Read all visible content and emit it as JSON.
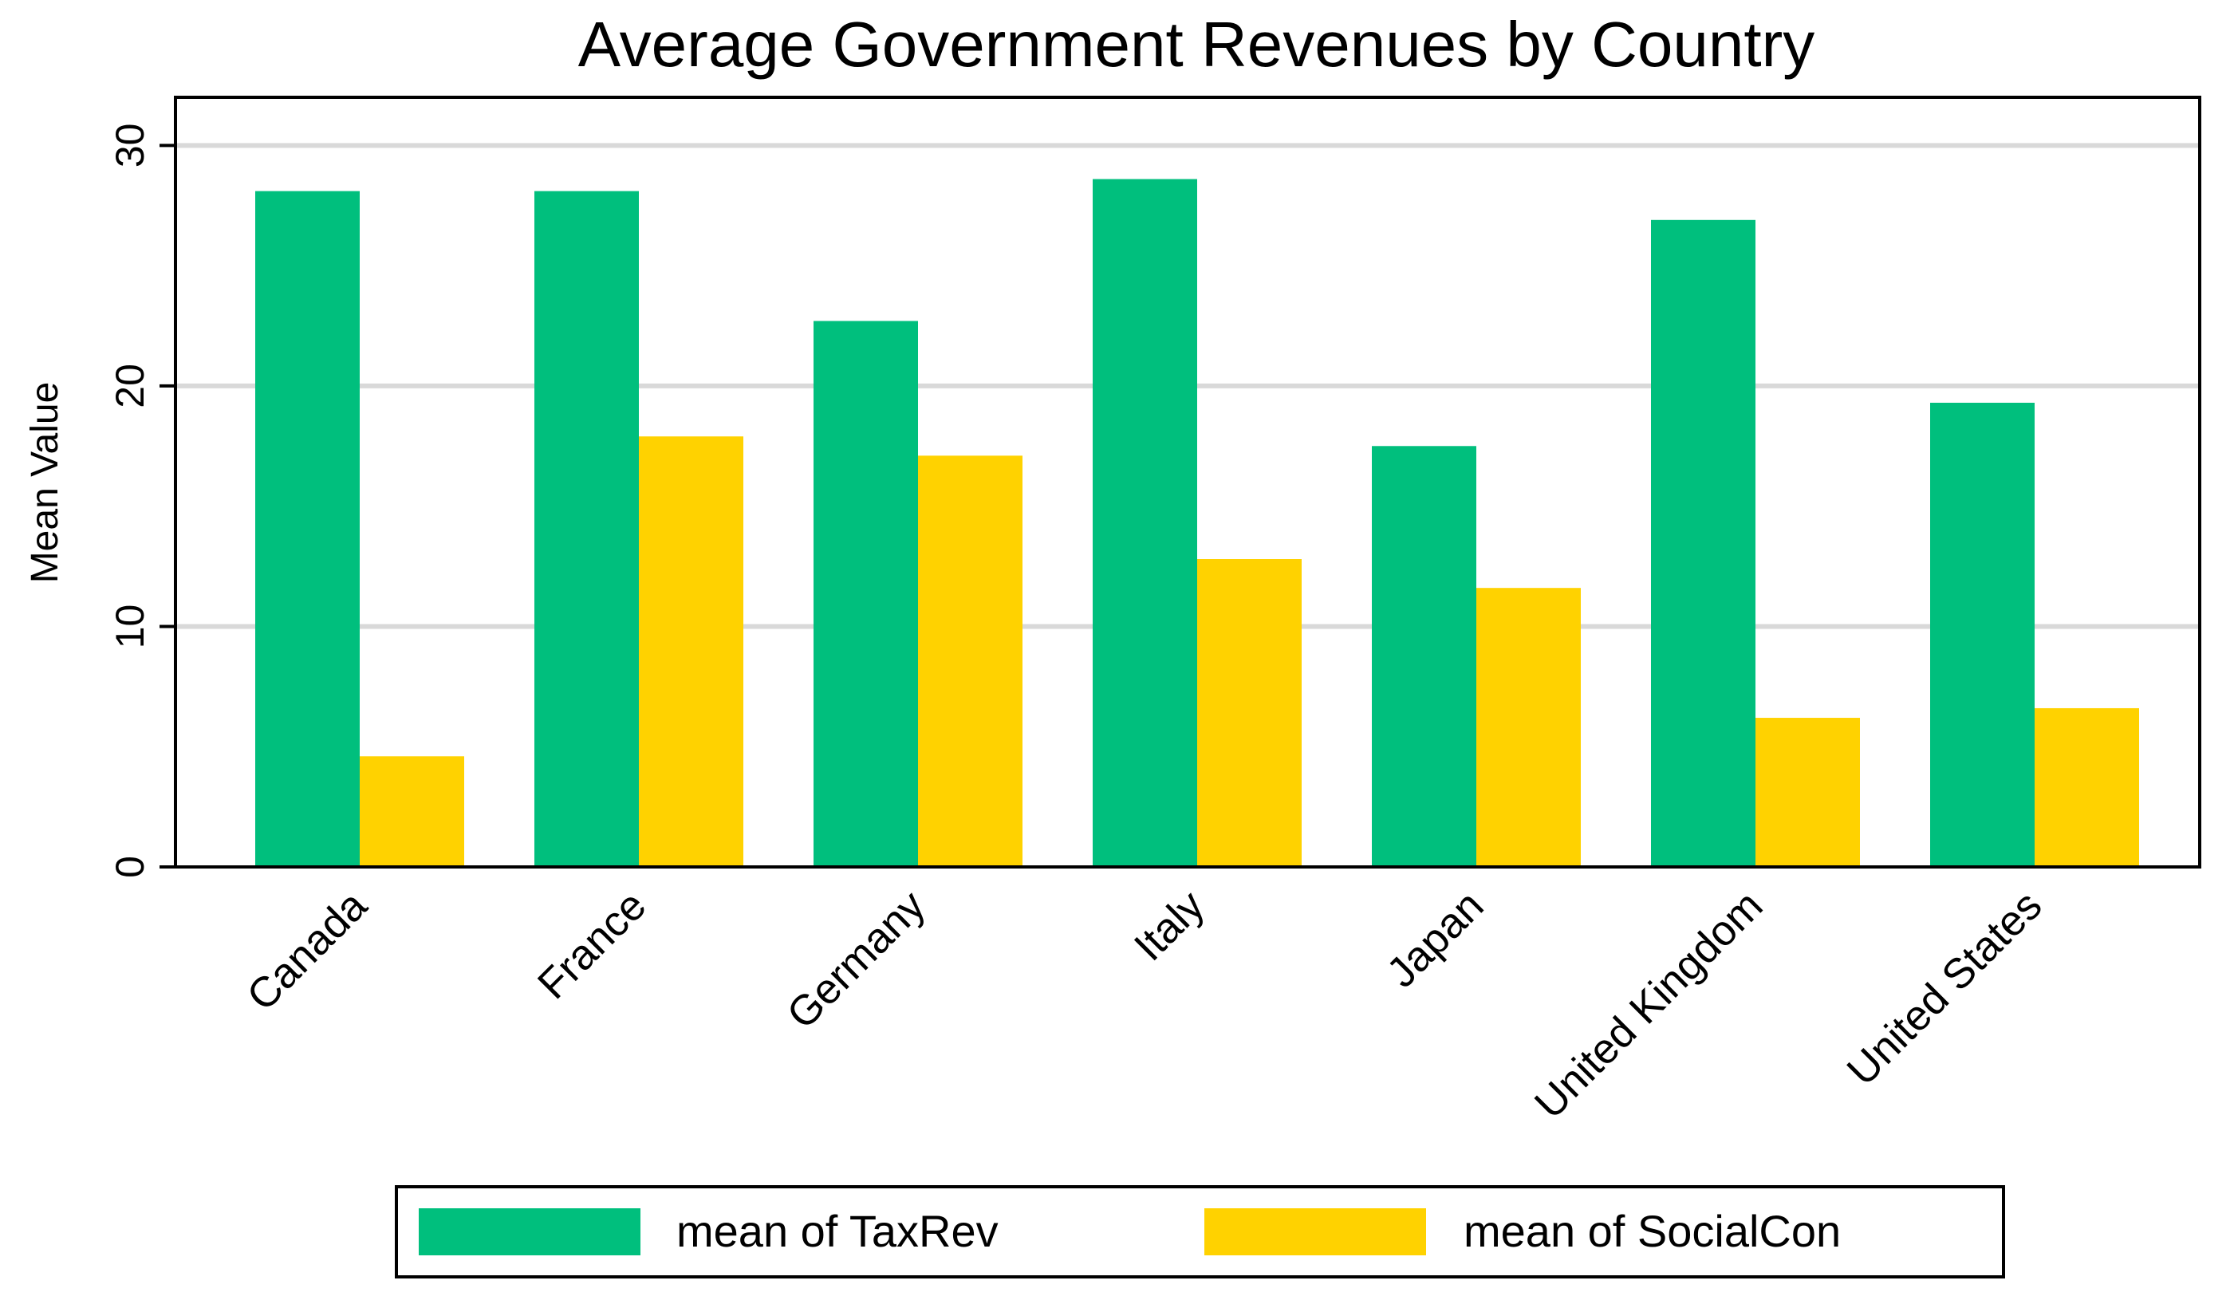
{
  "chart_data": {
    "type": "bar",
    "title": "Average Government Revenues by Country",
    "xlabel": "",
    "ylabel": "Mean Value",
    "categories": [
      "Canada",
      "France",
      "Germany",
      "Italy",
      "Japan",
      "United Kingdom",
      "United States"
    ],
    "series": [
      {
        "name": "mean of TaxRev",
        "color": "#00BF7D",
        "values": [
          28.1,
          28.1,
          22.7,
          28.6,
          17.5,
          26.9,
          19.3
        ]
      },
      {
        "name": "mean of SocialCon",
        "color": "#FFD200",
        "values": [
          4.6,
          17.9,
          17.1,
          12.8,
          11.6,
          6.2,
          6.6
        ]
      }
    ],
    "ylim": [
      0,
      32
    ],
    "yticks": [
      0,
      10,
      20,
      30
    ],
    "grid": true,
    "legend_position": "bottom"
  }
}
